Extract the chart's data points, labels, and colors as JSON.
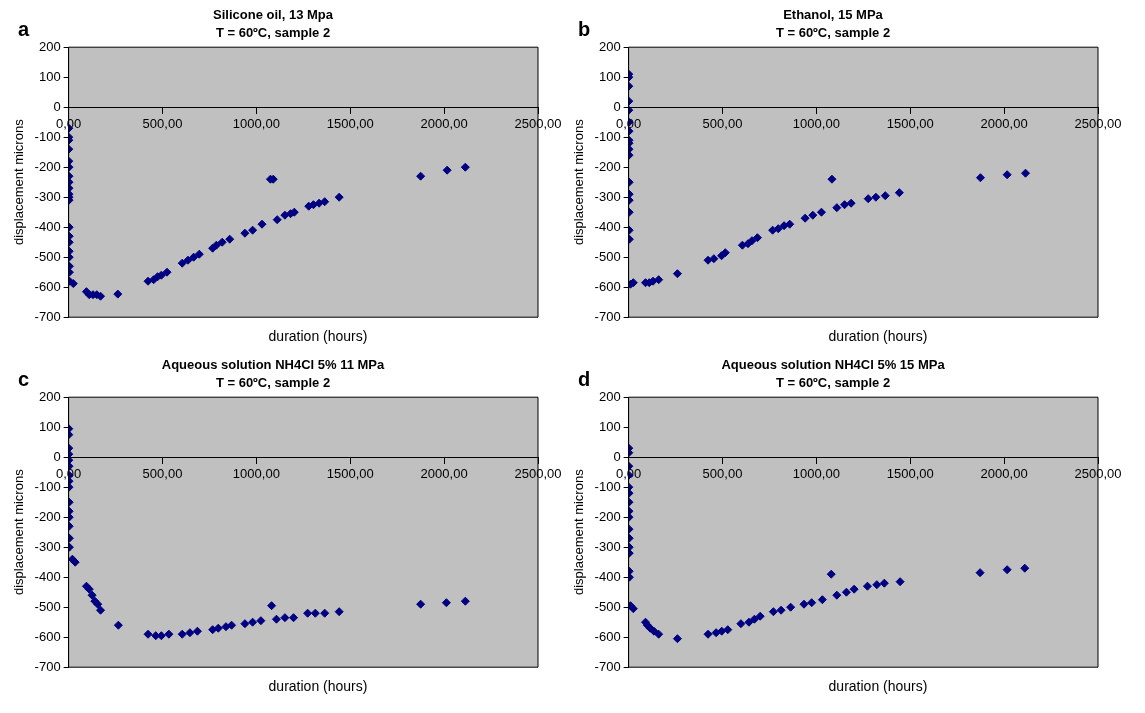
{
  "chart_data": [
    {
      "type": "scatter",
      "title": "Silicone oil, 13 Mpa",
      "subtitle": "T = 60ºC, sample 2",
      "annotations": [
        "a"
      ],
      "xlabel": "duration (hours)",
      "ylabel": "displacement microns",
      "xlim": [
        0,
        2500
      ],
      "ylim": [
        -700,
        200
      ],
      "xticks": [
        {
          "value": 0,
          "label": "0,00"
        },
        {
          "value": 500,
          "label": "500,00"
        },
        {
          "value": 1000,
          "label": "1000,00"
        },
        {
          "value": 1500,
          "label": "1500,00"
        },
        {
          "value": 2000,
          "label": "2000,00"
        },
        {
          "value": 2500,
          "label": "2500,00"
        }
      ],
      "yticks": [
        -700,
        -600,
        -500,
        -400,
        -300,
        -200,
        -100,
        0,
        100,
        200
      ],
      "grid": false,
      "marker": "diamond",
      "series": [
        {
          "color": "#000080",
          "x": [
            1,
            1,
            1,
            1,
            1,
            2,
            2,
            2,
            2,
            2,
            2,
            2,
            3,
            3,
            3,
            3,
            3,
            4,
            4,
            5,
            25,
            95,
            110,
            130,
            150,
            170,
            262,
            423,
            453,
            474,
            494,
            524,
            605,
            636,
            666,
            696,
            767,
            787,
            818,
            858,
            939,
            980,
            1030,
            1075,
            1090,
            1111,
            1152,
            1182,
            1202,
            1279,
            1304,
            1334,
            1364,
            1441,
            1875,
            2016,
            2113
          ],
          "values": [
            -70,
            -100,
            -110,
            -140,
            -180,
            -200,
            -230,
            -250,
            -270,
            -290,
            -300,
            -310,
            -400,
            -430,
            -450,
            -480,
            -500,
            -530,
            -550,
            -580,
            -588,
            -615,
            -625,
            -625,
            -625,
            -630,
            -623,
            -580,
            -575,
            -565,
            -560,
            -550,
            -520,
            -510,
            -500,
            -490,
            -470,
            -460,
            -450,
            -440,
            -420,
            -410,
            -390,
            -240,
            -240,
            -375,
            -360,
            -355,
            -350,
            -330,
            -325,
            -320,
            -315,
            -300,
            -230,
            -210,
            -200
          ]
        }
      ]
    },
    {
      "type": "scatter",
      "title": "Ethanol, 15 MPa",
      "subtitle": "T = 60ºC, sample 2",
      "annotations": [
        "b"
      ],
      "xlabel": "duration (hours)",
      "ylabel": "displacement microns",
      "xlim": [
        0,
        2500
      ],
      "ylim": [
        -700,
        200
      ],
      "xticks": [
        {
          "value": 0,
          "label": "0,00"
        },
        {
          "value": 500,
          "label": "500,00"
        },
        {
          "value": 1000,
          "label": "1000,00"
        },
        {
          "value": 1500,
          "label": "1500,00"
        },
        {
          "value": 2000,
          "label": "2000,00"
        },
        {
          "value": 2500,
          "label": "2500,00"
        }
      ],
      "yticks": [
        -700,
        -600,
        -500,
        -400,
        -300,
        -200,
        -100,
        0,
        100,
        200
      ],
      "grid": false,
      "marker": "diamond",
      "series": [
        {
          "color": "#000080",
          "x": [
            1,
            1,
            1,
            1,
            1,
            2,
            2,
            2,
            2,
            2,
            2,
            3,
            3,
            3,
            3,
            3,
            4,
            10,
            25,
            90,
            110,
            130,
            160,
            260,
            423,
            454,
            495,
            515,
            606,
            636,
            657,
            686,
            767,
            797,
            828,
            858,
            940,
            981,
            1027,
            1083,
            1109,
            1150,
            1185,
            1276,
            1317,
            1367,
            1442,
            1874,
            2016,
            2114
          ],
          "values": [
            110,
            100,
            70,
            20,
            -10,
            -50,
            -80,
            -110,
            -120,
            -140,
            -160,
            -250,
            -290,
            -310,
            -350,
            -410,
            -440,
            -590,
            -585,
            -585,
            -585,
            -580,
            -575,
            -555,
            -510,
            -505,
            -495,
            -485,
            -460,
            -455,
            -445,
            -435,
            -410,
            -405,
            -395,
            -390,
            -370,
            -360,
            -350,
            -240,
            -335,
            -325,
            -320,
            -305,
            -300,
            -295,
            -285,
            -235,
            -225,
            -220
          ]
        }
      ]
    },
    {
      "type": "scatter",
      "title": "Aqueous solution NH4Cl 5% 11 MPa",
      "subtitle": "T = 60ºC, sample 2",
      "annotations": [
        "c"
      ],
      "xlabel": "duration (hours)",
      "ylabel": "displacement microns",
      "xlim": [
        0,
        2500
      ],
      "ylim": [
        -700,
        200
      ],
      "xticks": [
        {
          "value": 0,
          "label": "0,00"
        },
        {
          "value": 500,
          "label": "500,00"
        },
        {
          "value": 1000,
          "label": "1000,00"
        },
        {
          "value": 1500,
          "label": "1500,00"
        },
        {
          "value": 2000,
          "label": "2000,00"
        },
        {
          "value": 2500,
          "label": "2500,00"
        }
      ],
      "yticks": [
        -700,
        -600,
        -500,
        -400,
        -300,
        -200,
        -100,
        0,
        100,
        200
      ],
      "grid": false,
      "marker": "diamond",
      "series": [
        {
          "color": "#000080",
          "x": [
            1,
            1,
            1,
            1,
            1,
            2,
            2,
            2,
            2,
            3,
            3,
            3,
            3,
            4,
            4,
            20,
            35,
            95,
            110,
            125,
            140,
            155,
            170,
            265,
            423,
            464,
            494,
            534,
            605,
            646,
            686,
            767,
            797,
            838,
            868,
            939,
            980,
            1024,
            1081,
            1107,
            1152,
            1198,
            1273,
            1314,
            1364,
            1441,
            1875,
            2012,
            2113
          ],
          "values": [
            95,
            75,
            30,
            10,
            -10,
            -30,
            -60,
            -80,
            -100,
            -150,
            -180,
            -200,
            -230,
            -270,
            -300,
            -340,
            -350,
            -430,
            -440,
            -460,
            -480,
            -490,
            -510,
            -560,
            -590,
            -595,
            -595,
            -590,
            -590,
            -585,
            -580,
            -575,
            -570,
            -565,
            -560,
            -555,
            -550,
            -545,
            -495,
            -540,
            -535,
            -535,
            -520,
            -520,
            -520,
            -515,
            -490,
            -485,
            -480
          ]
        }
      ]
    },
    {
      "type": "scatter",
      "title": "Aqueous solution NH4Cl 5% 15 MPa",
      "subtitle": "T = 60ºC, sample 2",
      "annotations": [
        "d"
      ],
      "xlabel": "duration (hours)",
      "ylabel": "displacement microns",
      "xlim": [
        0,
        2500
      ],
      "ylim": [
        -700,
        200
      ],
      "xticks": [
        {
          "value": 0,
          "label": "0,00"
        },
        {
          "value": 500,
          "label": "500,00"
        },
        {
          "value": 1000,
          "label": "1000,00"
        },
        {
          "value": 1500,
          "label": "1500,00"
        },
        {
          "value": 2000,
          "label": "2000,00"
        },
        {
          "value": 2500,
          "label": "2500,00"
        }
      ],
      "yticks": [
        -700,
        -600,
        -500,
        -400,
        -300,
        -200,
        -100,
        0,
        100,
        200
      ],
      "grid": false,
      "marker": "diamond",
      "series": [
        {
          "color": "#000080",
          "x": [
            1,
            1,
            1,
            1,
            1,
            2,
            2,
            2,
            2,
            2,
            3,
            3,
            3,
            3,
            4,
            10,
            25,
            90,
            100,
            115,
            135,
            160,
            260,
            423,
            466,
            496,
            528,
            598,
            641,
            670,
            701,
            771,
            812,
            863,
            934,
            975,
            1032,
            1079,
            1109,
            1160,
            1201,
            1272,
            1322,
            1362,
            1446,
            1872,
            2016,
            2110
          ],
          "values": [
            30,
            15,
            -30,
            -60,
            -100,
            -120,
            -150,
            -180,
            -200,
            -240,
            -270,
            -300,
            -320,
            -380,
            -400,
            -495,
            -505,
            -550,
            -560,
            -570,
            -580,
            -590,
            -605,
            -590,
            -585,
            -580,
            -575,
            -555,
            -550,
            -540,
            -530,
            -515,
            -510,
            -500,
            -490,
            -485,
            -475,
            -390,
            -460,
            -450,
            -440,
            -430,
            -425,
            -420,
            -415,
            -385,
            -375,
            -370
          ]
        }
      ]
    }
  ]
}
